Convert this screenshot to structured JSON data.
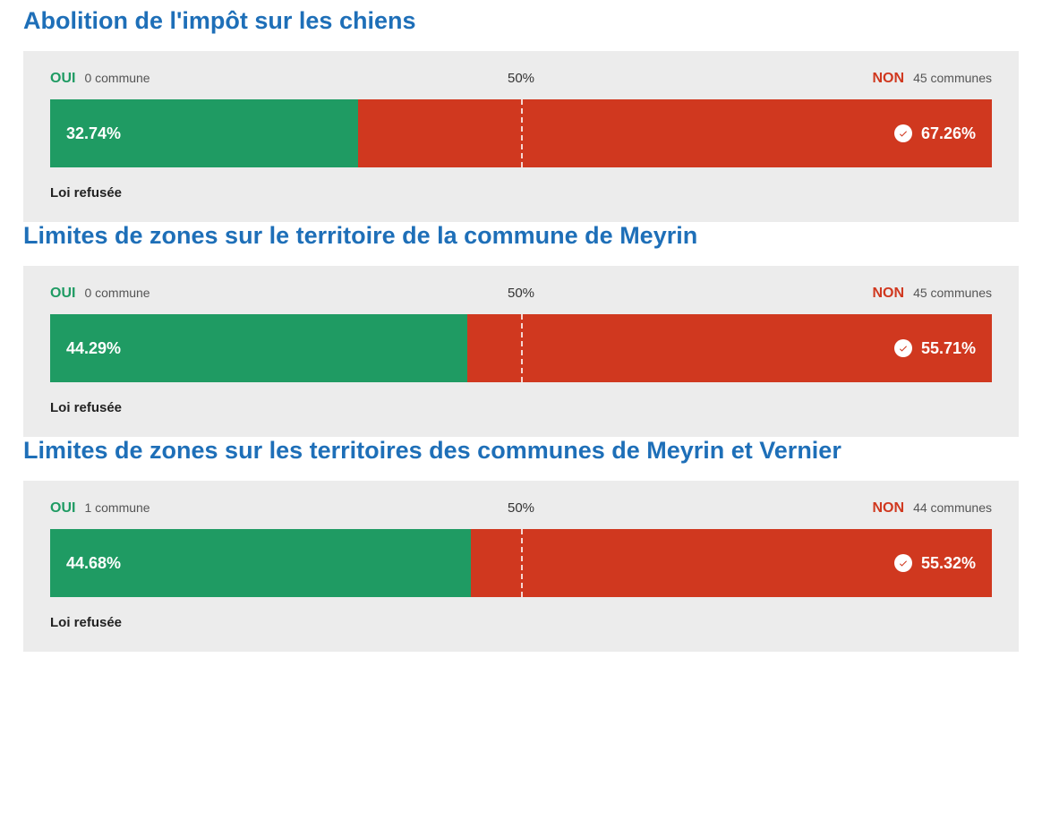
{
  "colors": {
    "title": "#1e6fb8",
    "panel_bg": "#ececec",
    "oui": "#1f9b63",
    "non": "#d0381f",
    "bar_text": "#ffffff"
  },
  "fifty_label": "50%",
  "oui_word": "OUI",
  "non_word": "NON",
  "votes": [
    {
      "title": "Abolition de l'impôt sur les chiens",
      "oui_communes": "0 commune",
      "non_communes": "45 communes",
      "oui_pct": 32.74,
      "non_pct": 67.26,
      "oui_pct_label": "32.74%",
      "non_pct_label": "67.26%",
      "status": "Loi refusée"
    },
    {
      "title": "Limites de zones sur le territoire de la commune de Meyrin",
      "oui_communes": "0 commune",
      "non_communes": "45 communes",
      "oui_pct": 44.29,
      "non_pct": 55.71,
      "oui_pct_label": "44.29%",
      "non_pct_label": "55.71%",
      "status": "Loi refusée"
    },
    {
      "title": "Limites de zones sur les territoires des communes de Meyrin et Vernier",
      "oui_communes": "1 commune",
      "non_communes": "44 communes",
      "oui_pct": 44.68,
      "non_pct": 55.32,
      "oui_pct_label": "44.68%",
      "non_pct_label": "55.32%",
      "status": "Loi refusée"
    }
  ]
}
